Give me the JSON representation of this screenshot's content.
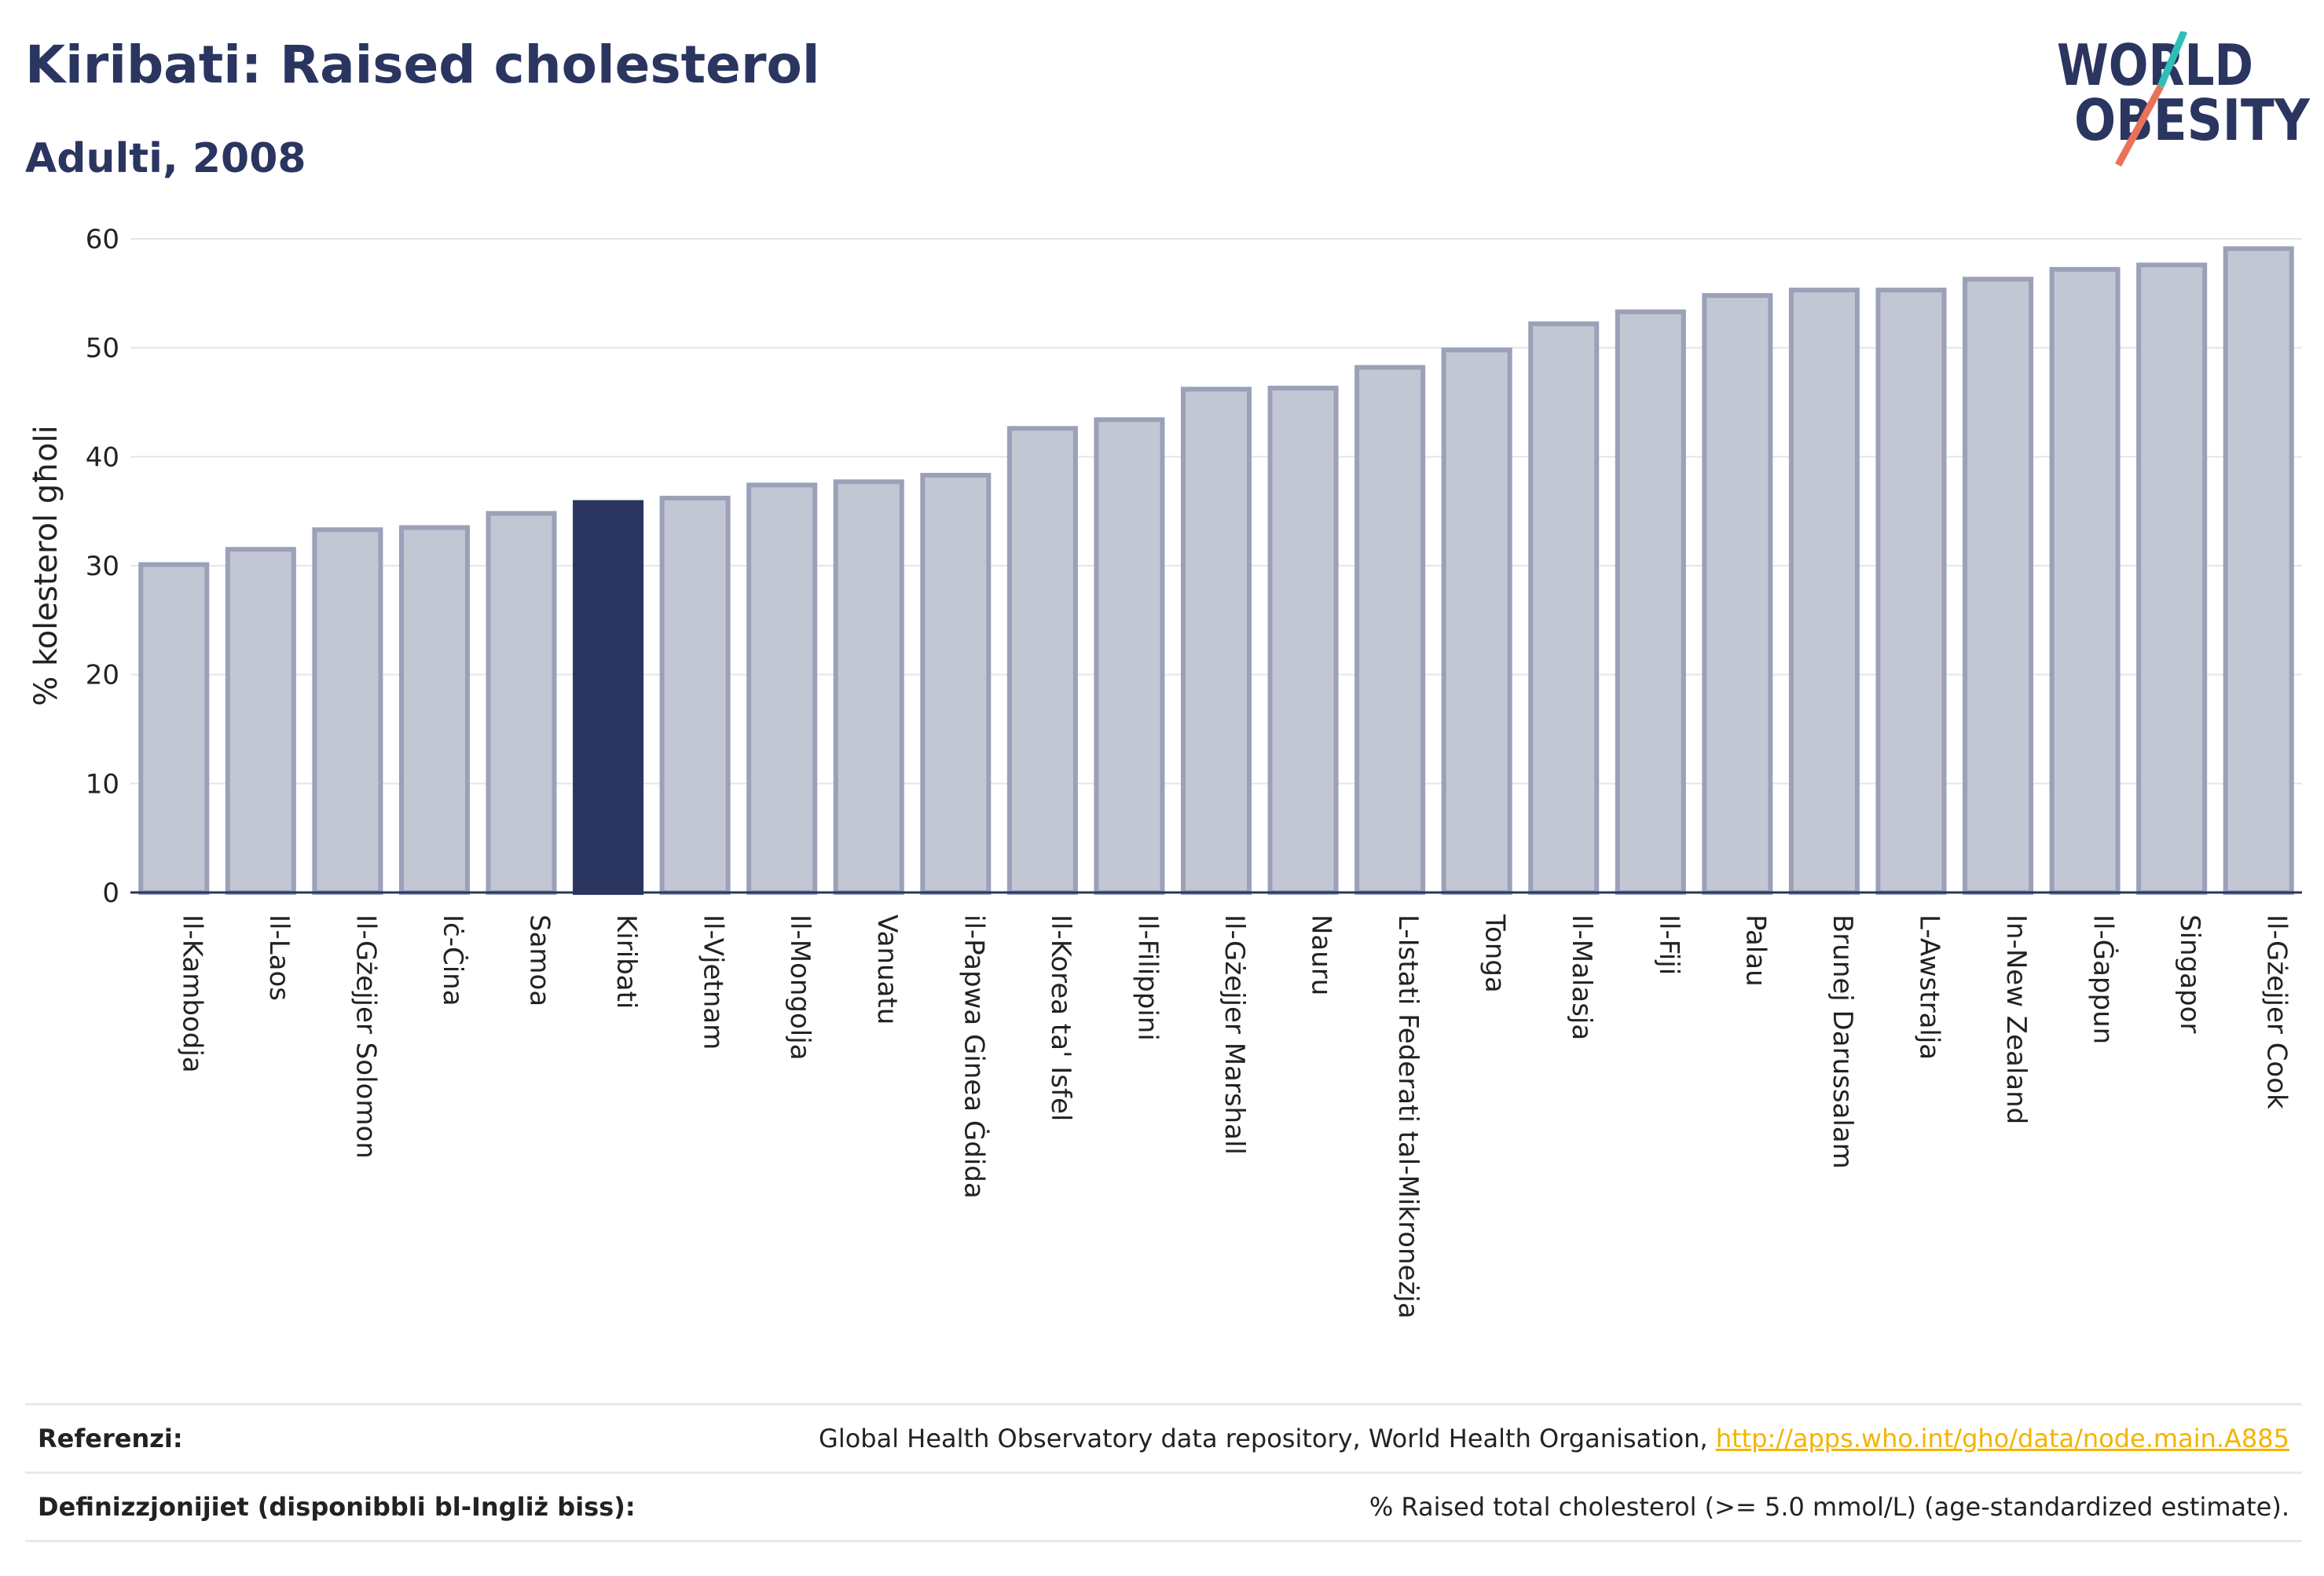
{
  "header": {
    "title": "Kiribati: Raised cholesterol",
    "subtitle": "Adulti, 2008"
  },
  "logo": {
    "line1": "WORLD",
    "line2": "OBESITY",
    "colors": {
      "text": "#2a3560",
      "slash_top": "#2fbfb8",
      "slash_bottom": "#e8735a"
    }
  },
  "colors": {
    "bar": "#c3c7d4",
    "bar_stroke": "#9aa1b8",
    "highlight": "#2a3560",
    "grid": "#e3e5ec",
    "axis": "#2a3560"
  },
  "chart_data": {
    "type": "bar",
    "ylabel": "% kolesterol għoli",
    "ylim": [
      0,
      60
    ],
    "yticks": [
      0,
      10,
      20,
      30,
      40,
      50,
      60
    ],
    "grid": true,
    "highlight_category": "Kiribati",
    "categories": [
      "Il-Kambodja",
      "Il-Laos",
      "Il-Gżejjer Solomon",
      "Iċ-Ċina",
      "Samoa",
      "Kiribati",
      "Il-Vjetnam",
      "Il-Mongolja",
      "Vanuatu",
      "il-Papwa Ginea Ġdida",
      "Il-Korea ta' Isfel",
      "Il-Filippini",
      "Il-Gżejjer Marshall",
      "Nauru",
      "L-Istati Federati tal-Mikroneżja",
      "Tonga",
      "Il-Malasja",
      "Il-Fiji",
      "Palau",
      "Brunej Darussalam",
      "L-Awstralja",
      "In-New Zealand",
      "Il-Ġappun",
      "Singapor",
      "Il-Gżejjer Cook"
    ],
    "values": [
      30.1,
      31.5,
      33.3,
      33.5,
      34.8,
      35.8,
      36.2,
      37.4,
      37.7,
      38.3,
      42.6,
      43.4,
      46.2,
      46.3,
      48.2,
      49.8,
      52.2,
      53.3,
      54.8,
      55.3,
      55.3,
      56.3,
      57.2,
      57.6,
      59.1
    ]
  },
  "footer": {
    "ref_label": "Referenzi:",
    "ref_text": "Global Health Observatory data repository, World Health Organisation, ",
    "ref_link": "http://apps.who.int/gho/data/node.main.A885",
    "def_label": "Definizzjonijiet (disponibbli bl-Ingliż biss):",
    "def_text": "% Raised total cholesterol (>= 5.0 mmol/L) (age-standardized estimate)."
  }
}
